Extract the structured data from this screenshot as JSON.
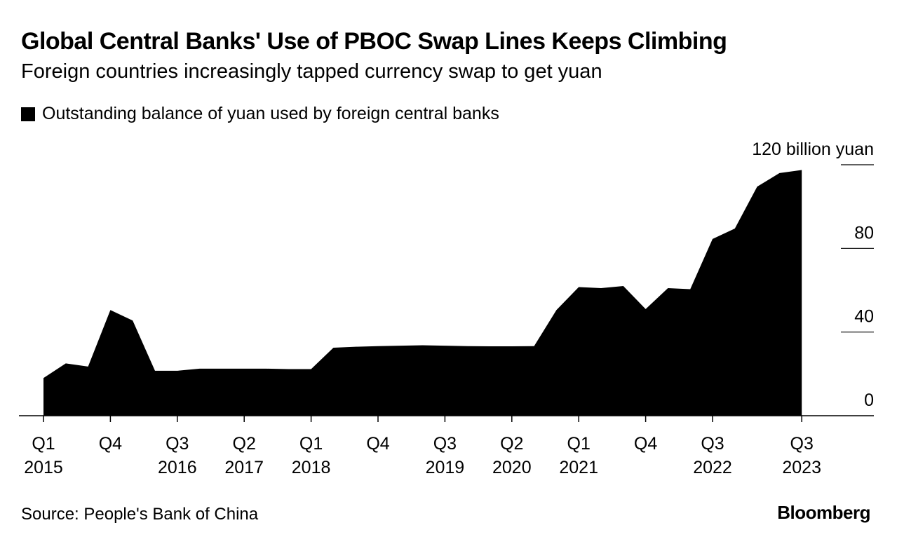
{
  "title": "Global Central Banks' Use of PBOC Swap Lines Keeps Climbing",
  "subtitle": "Foreign countries increasingly tapped currency swap to get yuan",
  "legend": {
    "label": "Outstanding balance of yuan used by foreign central banks",
    "color": "#000000"
  },
  "source": "Source: People's Bank of China",
  "brand": "Bloomberg",
  "chart_data": {
    "type": "area",
    "title": "Global Central Banks' Use of PBOC Swap Lines Keeps Climbing",
    "subtitle": "Foreign countries increasingly tapped currency swap to get yuan",
    "xlabel": "",
    "ylabel": "",
    "ylim": [
      0,
      120
    ],
    "unit_label": "120 billion yuan",
    "y_ticks": [
      {
        "value": 0,
        "label": "0"
      },
      {
        "value": 40,
        "label": "40"
      },
      {
        "value": 80,
        "label": "80"
      },
      {
        "value": 120,
        "label": "120 billion yuan"
      }
    ],
    "x_ticks": [
      {
        "quarter": "Q1",
        "year": "2015"
      },
      {
        "quarter": "Q4",
        "year": ""
      },
      {
        "quarter": "Q3",
        "year": "2016"
      },
      {
        "quarter": "Q2",
        "year": "2017"
      },
      {
        "quarter": "Q1",
        "year": "2018"
      },
      {
        "quarter": "Q4",
        "year": ""
      },
      {
        "quarter": "Q3",
        "year": "2019"
      },
      {
        "quarter": "Q2",
        "year": "2020"
      },
      {
        "quarter": "Q1",
        "year": "2021"
      },
      {
        "quarter": "Q4",
        "year": ""
      },
      {
        "quarter": "Q3",
        "year": "2022"
      },
      {
        "quarter": "Q3",
        "year": "2023"
      }
    ],
    "x": [
      "2015 Q1",
      "2015 Q2",
      "2015 Q3",
      "2015 Q4",
      "2016 Q1",
      "2016 Q2",
      "2016 Q3",
      "2016 Q4",
      "2017 Q1",
      "2017 Q2",
      "2017 Q3",
      "2017 Q4",
      "2018 Q1",
      "2018 Q2",
      "2018 Q3",
      "2018 Q4",
      "2019 Q1",
      "2019 Q2",
      "2019 Q3",
      "2019 Q4",
      "2020 Q1",
      "2020 Q2",
      "2020 Q3",
      "2020 Q4",
      "2021 Q1",
      "2021 Q2",
      "2021 Q3",
      "2021 Q4",
      "2022 Q1",
      "2022 Q2",
      "2022 Q3",
      "2022 Q4",
      "2023 Q1",
      "2023 Q2",
      "2023 Q3"
    ],
    "series": [
      {
        "name": "Outstanding balance of yuan used by foreign central banks",
        "color": "#000000",
        "values": [
          18,
          25,
          23.5,
          50.5,
          45.5,
          21.5,
          21.5,
          22.5,
          22.5,
          22.5,
          22.5,
          22.3,
          22.3,
          32.5,
          33,
          33.3,
          33.5,
          33.7,
          33.5,
          33.3,
          33.2,
          33.2,
          33.3,
          50.5,
          61.5,
          61,
          62,
          51,
          61,
          60.5,
          84.5,
          89.5,
          109.5,
          116,
          117.5
        ]
      }
    ],
    "grid": false,
    "legend_position": "top-left"
  }
}
